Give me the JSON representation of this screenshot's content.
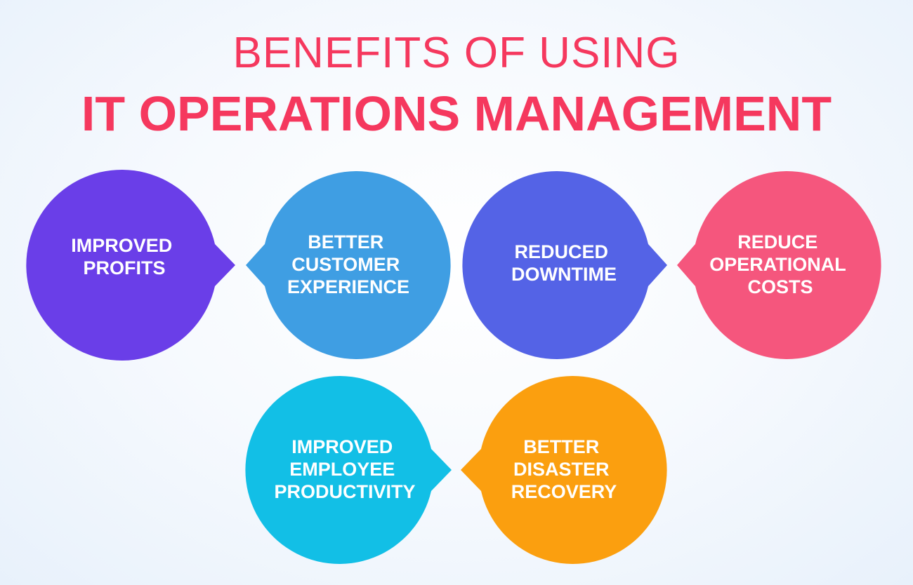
{
  "title": {
    "line1": "BENEFITS OF USING",
    "line2": "IT OPERATIONS MANAGEMENT"
  },
  "colors": {
    "title": "#f5385e",
    "label": "#ffffff"
  },
  "benefits": [
    {
      "lines": [
        "IMPROVED",
        "PROFITS"
      ],
      "color": "#6a3ee8"
    },
    {
      "lines": [
        "BETTER",
        "CUSTOMER",
        "EXPERIENCE"
      ],
      "color": "#3f9ee3"
    },
    {
      "lines": [
        "REDUCED",
        "DOWNTIME"
      ],
      "color": "#5463e6"
    },
    {
      "lines": [
        "REDUCE",
        "OPERATIONAL",
        "COSTS"
      ],
      "color": "#f5567d"
    },
    {
      "lines": [
        "IMPROVED",
        "EMPLOYEE",
        "PRODUCTIVITY"
      ],
      "color": "#12bfe6"
    },
    {
      "lines": [
        "BETTER",
        "DISASTER",
        "RECOVERY"
      ],
      "color": "#fb9f0f"
    }
  ]
}
